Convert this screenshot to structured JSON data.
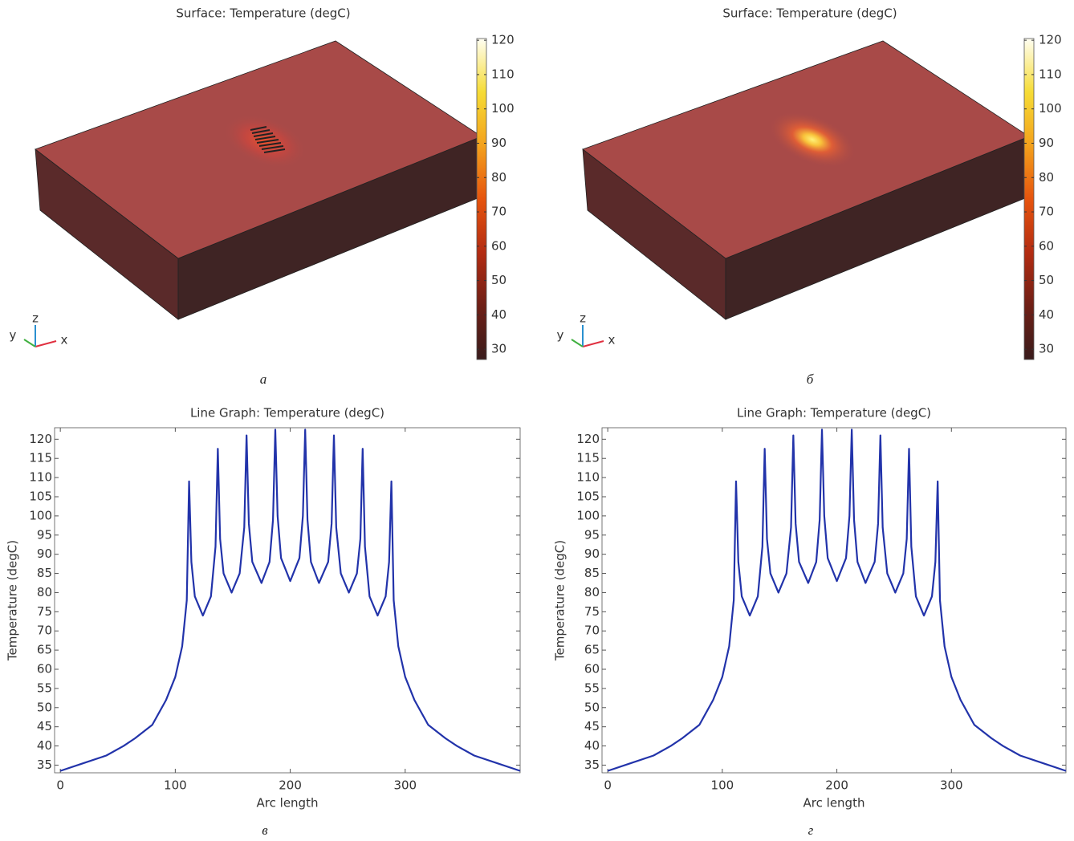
{
  "chart_data": [
    {
      "type": "surface",
      "title": "Surface: Temperature (degC)",
      "caption": "а",
      "clim": [
        27,
        120.5
      ],
      "cticks": [
        30,
        40,
        50,
        60,
        70,
        80,
        90,
        100,
        110,
        120
      ],
      "colormap": [
        "#3a1c1c",
        "#6e1f16",
        "#b32c12",
        "#e6540e",
        "#f3a11c",
        "#f6dc36",
        "#fffef2"
      ],
      "triad": [
        "x",
        "y",
        "z"
      ],
      "pattern": true
    },
    {
      "type": "surface",
      "title": "Surface: Temperature (degC)",
      "caption": "б",
      "clim": [
        27,
        120.5
      ],
      "cticks": [
        30,
        40,
        50,
        60,
        70,
        80,
        90,
        100,
        110,
        120
      ],
      "colormap": [
        "#3a1c1c",
        "#6e1f16",
        "#b32c12",
        "#e6540e",
        "#f3a11c",
        "#f6dc36",
        "#fffef2"
      ],
      "triad": [
        "x",
        "y",
        "z"
      ],
      "pattern": false
    },
    {
      "type": "line",
      "title": "Line Graph: Temperature (degC)",
      "caption": "в",
      "x_label": "Arc length",
      "y_label": "Temperature (degC)",
      "color": "#2233aa",
      "xlim": [
        -5,
        400
      ],
      "ylim": [
        33,
        123
      ],
      "xticks": [
        0,
        100,
        200,
        300
      ],
      "yticks": [
        35,
        40,
        45,
        50,
        55,
        60,
        65,
        70,
        75,
        80,
        85,
        90,
        95,
        100,
        105,
        110,
        115,
        120
      ],
      "x": [
        0,
        20,
        40,
        55,
        65,
        80,
        92,
        100,
        106,
        110,
        112,
        114,
        117,
        124,
        131,
        135,
        137,
        139,
        142,
        149,
        156,
        160,
        162,
        164,
        167,
        175,
        182,
        185,
        187,
        189,
        192,
        200,
        208,
        211,
        213,
        215,
        218,
        225,
        233,
        236,
        238,
        240,
        244,
        251,
        258,
        261,
        263,
        265,
        269,
        276,
        283,
        286,
        288,
        290,
        294,
        300,
        308,
        320,
        335,
        345,
        360,
        380,
        400
      ],
      "values": [
        33.5,
        35.5,
        37.5,
        40,
        42,
        45.5,
        52,
        58,
        66,
        78,
        109,
        88,
        79,
        74,
        79,
        92,
        117.5,
        94,
        85,
        80,
        85,
        97,
        121,
        98,
        88,
        82.5,
        88,
        99,
        122.5,
        100,
        89,
        83,
        89,
        100,
        122.5,
        99,
        88,
        82.5,
        88,
        98,
        121,
        97,
        85,
        80,
        85,
        94,
        117.5,
        92,
        79,
        74,
        79,
        88,
        109,
        78,
        66,
        58,
        52,
        45.5,
        42,
        40,
        37.5,
        35.5,
        33.5
      ]
    },
    {
      "type": "line",
      "title": "Line Graph: Temperature (degC)",
      "caption": "г",
      "x_label": "Arc length",
      "y_label": "Temperature (degC)",
      "color": "#2233aa",
      "xlim": [
        -5,
        400
      ],
      "ylim": [
        33,
        123
      ],
      "xticks": [
        0,
        100,
        200,
        300
      ],
      "yticks": [
        35,
        40,
        45,
        50,
        55,
        60,
        65,
        70,
        75,
        80,
        85,
        90,
        95,
        100,
        105,
        110,
        115,
        120
      ],
      "x": [
        0,
        20,
        40,
        55,
        65,
        80,
        92,
        100,
        106,
        110,
        112,
        114,
        117,
        124,
        131,
        135,
        137,
        139,
        142,
        149,
        156,
        160,
        162,
        164,
        167,
        175,
        182,
        185,
        187,
        189,
        192,
        200,
        208,
        211,
        213,
        215,
        218,
        225,
        233,
        236,
        238,
        240,
        244,
        251,
        258,
        261,
        263,
        265,
        269,
        276,
        283,
        286,
        288,
        290,
        294,
        300,
        308,
        320,
        335,
        345,
        360,
        380,
        400
      ],
      "values": [
        33.5,
        35.5,
        37.5,
        40,
        42,
        45.5,
        52,
        58,
        66,
        78,
        109,
        88,
        79,
        74,
        79,
        92,
        117.5,
        94,
        85,
        80,
        85,
        97,
        121,
        98,
        88,
        82.5,
        88,
        99,
        122.5,
        100,
        89,
        83,
        89,
        100,
        122.5,
        99,
        88,
        82.5,
        88,
        98,
        121,
        97,
        85,
        80,
        85,
        94,
        117.5,
        92,
        79,
        74,
        79,
        88,
        109,
        78,
        66,
        58,
        52,
        45.5,
        42,
        40,
        37.5,
        35.5,
        33.5
      ]
    }
  ]
}
